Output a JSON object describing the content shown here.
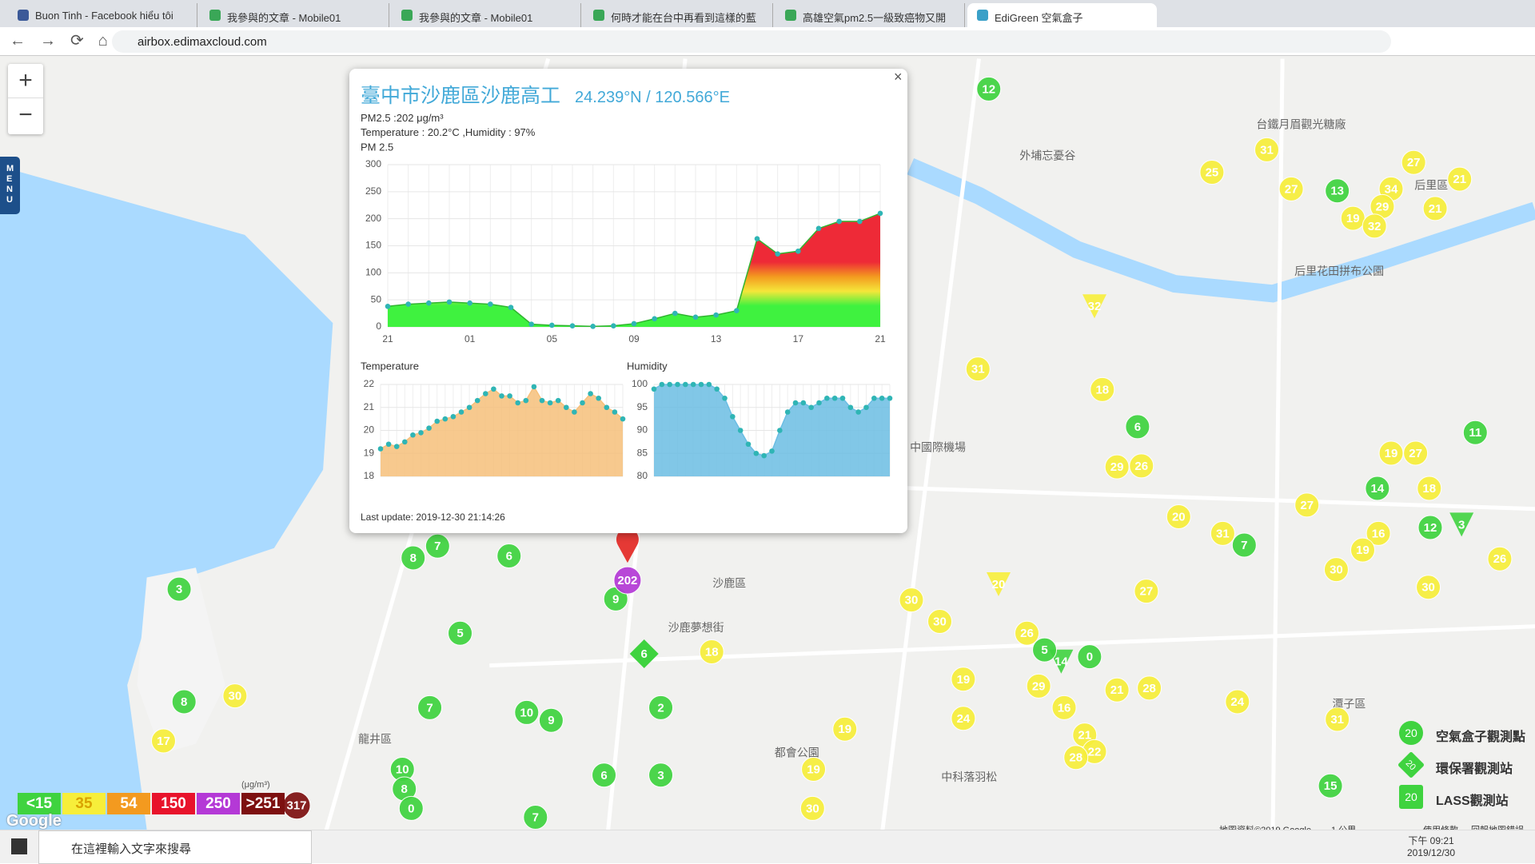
{
  "browser": {
    "tabs": [
      "Buon Tinh - Facebook hiểu tôi",
      "我參與的文章 - Mobile01",
      "我參與的文章 - Mobile01",
      "何時才能在台中再看到這樣的藍",
      "高雄空氣pm2.5一級致癌物又開",
      "EdiGreen 空氣盒子"
    ],
    "address": "airbox.edimaxcloud.com"
  },
  "sidebar_menu": "MENU",
  "popup": {
    "title": "臺中市沙鹿區沙鹿高工",
    "coords": "24.239°N / 120.566°E",
    "pm_line": "PM2.5 :202 μg/m³",
    "weather_line": "Temperature : 20.2°C ,Humidity : 97%",
    "last_update": "Last update: 2019-12-30 21:14:26"
  },
  "chart_data": [
    {
      "type": "area",
      "title": "PM 2.5",
      "categories": [
        "21",
        null,
        null,
        null,
        "01",
        null,
        null,
        null,
        "05",
        null,
        null,
        null,
        "09",
        null,
        null,
        null,
        "13",
        null,
        null,
        null,
        "17",
        null,
        null,
        null,
        "21"
      ],
      "values": [
        38,
        42,
        44,
        46,
        44,
        42,
        36,
        5,
        3,
        2,
        1,
        2,
        6,
        15,
        25,
        18,
        22,
        30,
        163,
        135,
        140,
        182,
        195,
        195,
        210
      ],
      "ylim": [
        0,
        300
      ],
      "yticks": [
        0,
        50,
        100,
        150,
        200,
        250,
        300
      ],
      "grid": true,
      "colors": [
        "#3ff23f",
        "#f5e63a",
        "#f39a1f",
        "#ee2a37"
      ],
      "point_color": "#2fb5b5"
    },
    {
      "type": "area",
      "title": "Temperature",
      "values": [
        19.2,
        19.4,
        19.3,
        19.5,
        19.8,
        19.9,
        20.1,
        20.4,
        20.5,
        20.6,
        20.8,
        21.0,
        21.3,
        21.6,
        21.8,
        21.5,
        21.5,
        21.2,
        21.3,
        21.9,
        21.3,
        21.2,
        21.3,
        21.0,
        20.8,
        21.2,
        21.6,
        21.4,
        21.0,
        20.8,
        20.5
      ],
      "ylim": [
        18,
        22
      ],
      "yticks": [
        18,
        19,
        20,
        21,
        22
      ],
      "grid": true,
      "color": "#f6c07a",
      "point_color": "#2fb5b5"
    },
    {
      "type": "area",
      "title": "Humidity",
      "values": [
        99,
        100,
        100,
        100,
        100,
        100,
        100,
        100,
        99,
        97,
        93,
        90,
        87,
        85,
        84.5,
        85.5,
        90,
        94,
        96,
        96,
        95,
        96,
        97,
        97,
        97,
        95,
        94,
        95,
        97,
        97,
        97
      ],
      "ylim": [
        80,
        100
      ],
      "yticks": [
        80,
        85,
        90,
        95,
        100
      ],
      "grid": true,
      "color": "#6bbde3",
      "point_color": "#2fb5b5"
    }
  ],
  "map": {
    "markers": [
      12,
      31,
      25,
      27,
      13,
      34,
      27,
      21,
      29,
      21,
      19,
      32,
      32,
      31,
      18,
      6,
      11,
      19,
      27,
      29,
      26,
      14,
      18,
      27,
      20,
      16,
      31,
      7,
      12,
      3,
      19,
      30,
      30,
      26,
      27,
      30,
      30,
      26,
      20,
      0,
      14,
      5,
      19,
      29,
      21,
      28,
      16,
      24,
      24,
      21,
      22,
      28,
      31,
      19,
      19,
      30,
      15,
      18,
      6,
      2,
      10,
      9,
      5,
      7,
      9,
      202,
      6,
      7,
      8,
      3,
      8,
      30,
      17,
      10,
      8,
      0,
      6,
      3,
      7,
      317
    ],
    "place_labels": [
      "台鐵月眉觀光糖廠",
      "外埔忘憂谷",
      "后里區",
      "后里花田拼布公園",
      "中國際機場",
      "沙鹿區",
      "沙鹿夢想街",
      "龍井區",
      "都會公園",
      "中科落羽松",
      "潭子區"
    ],
    "legend": {
      "unit": "(μg/m³)",
      "levels": [
        {
          "value": 15,
          "label": "<15"
        },
        35,
        54,
        150,
        250,
        {
          "value": 251,
          "label": ">251"
        }
      ],
      "colors": [
        "#3fd33f",
        "#f7ee3a",
        "#f39a1f",
        "#e8132b",
        "#b439d6",
        "#7d1010"
      ]
    },
    "station_legend": [
      {
        "sample": 20,
        "label": "空氣盒子觀測點"
      },
      {
        "sample": 20,
        "label": "環保署觀測站"
      },
      {
        "sample": 20,
        "label": "LASS觀測站"
      }
    ],
    "attribution": [
      "Google",
      "地圖資料©2019 Google",
      "1 公里",
      "使用條款",
      "回報地圖錯誤"
    ]
  },
  "taskbar": {
    "search": "在這裡輸入文字來搜尋",
    "time": "下午 09:21",
    "date": "2019/12/30"
  }
}
